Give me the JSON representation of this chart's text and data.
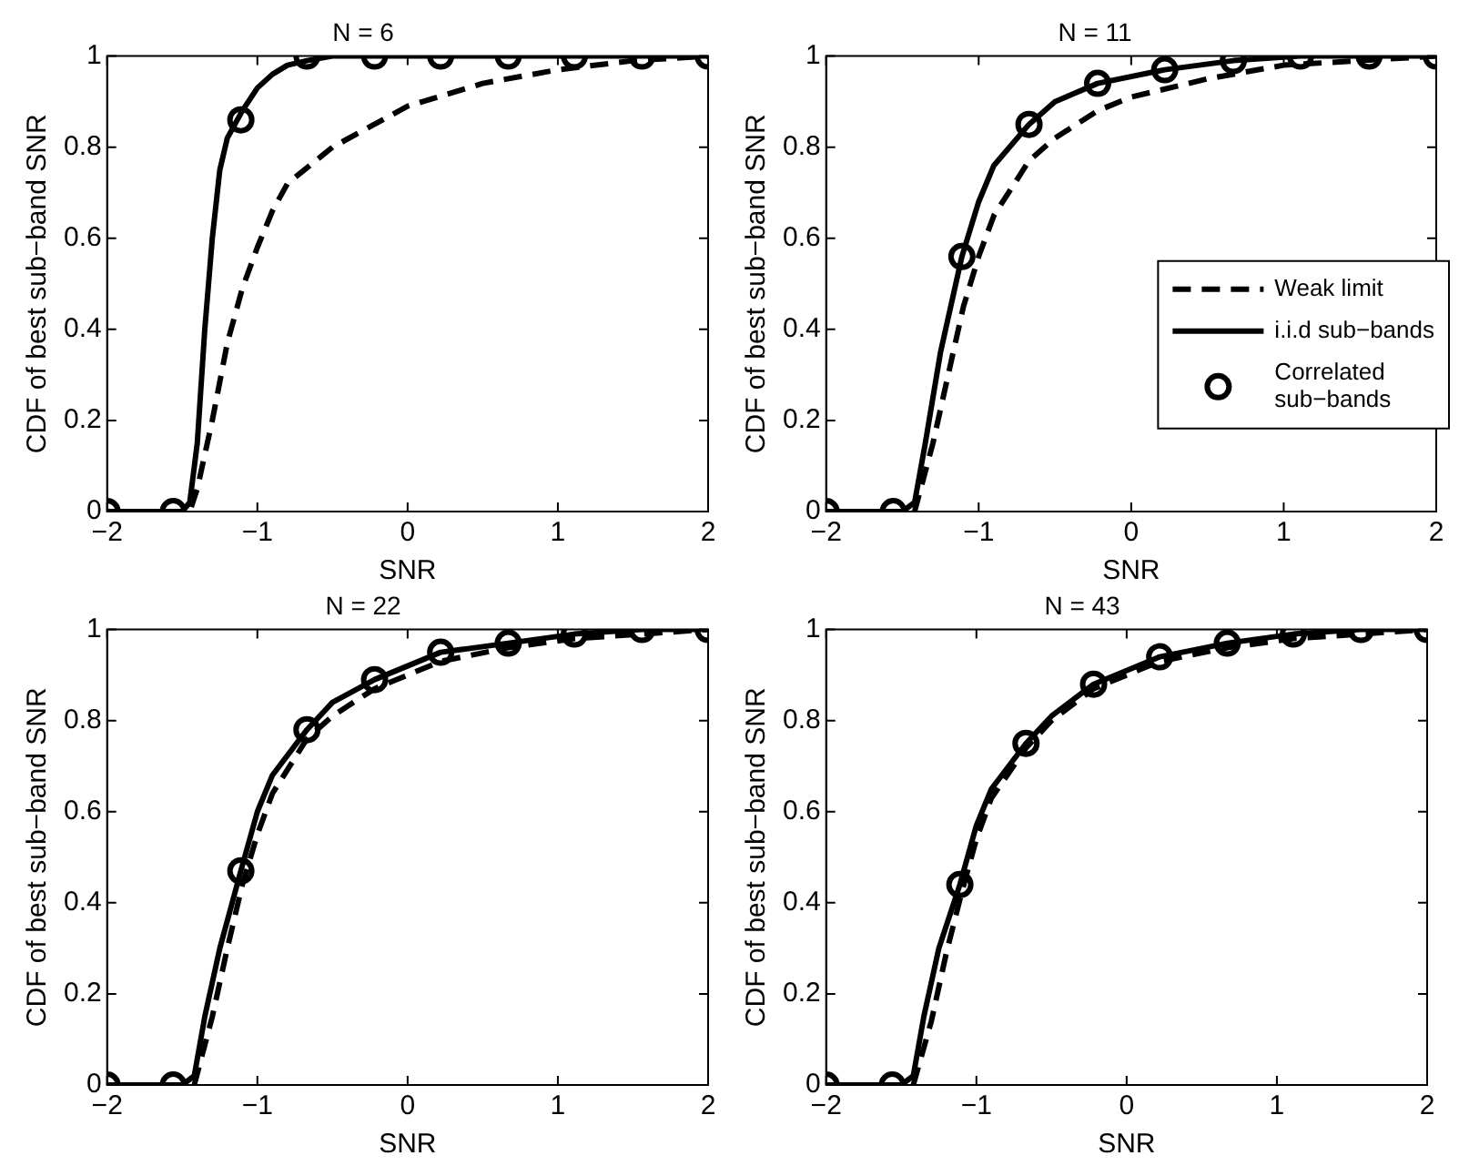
{
  "chart_data": [
    {
      "type": "line",
      "title": "N = 6",
      "xlabel": "SNR",
      "ylabel": "CDF of best sub−band SNR",
      "xlim": [
        -2,
        2
      ],
      "ylim": [
        0,
        1
      ],
      "xticks": [
        -2,
        -1,
        0,
        1,
        2
      ],
      "yticks": [
        0,
        0.2,
        0.4,
        0.6,
        0.8,
        1
      ],
      "grid": false,
      "legend": false,
      "series": [
        {
          "type": "line",
          "line_style": "dashed",
          "color": "#000000",
          "x": [
            -2,
            -1.45,
            -1.4,
            -1.3,
            -1.2,
            -1.1,
            -1,
            -0.9,
            -0.8,
            -0.5,
            0,
            0.5,
            1,
            1.5,
            2
          ],
          "values": [
            0,
            0,
            0.05,
            0.2,
            0.37,
            0.49,
            0.58,
            0.66,
            0.72,
            0.8,
            0.89,
            0.94,
            0.97,
            0.99,
            1
          ]
        },
        {
          "type": "line",
          "line_style": "solid",
          "color": "#000000",
          "x": [
            -2,
            -1.5,
            -1.45,
            -1.4,
            -1.35,
            -1.3,
            -1.25,
            -1.2,
            -1.1,
            -1,
            -0.9,
            -0.8,
            -0.67,
            -0.5,
            2
          ],
          "values": [
            0,
            0,
            0.02,
            0.15,
            0.4,
            0.6,
            0.75,
            0.82,
            0.88,
            0.93,
            0.96,
            0.98,
            0.99,
            1,
            1
          ]
        },
        {
          "type": "scatter",
          "marker": "circle",
          "color": "#000000",
          "x": [
            -2,
            -1.56,
            -1.11,
            -0.67,
            -0.22,
            0.22,
            0.67,
            1.11,
            1.56,
            2
          ],
          "values": [
            0,
            0,
            0.86,
            1,
            1,
            1,
            1,
            1,
            1,
            1
          ]
        }
      ]
    },
    {
      "type": "line",
      "title": "N = 11",
      "xlabel": "SNR",
      "ylabel": "CDF of best sub−band SNR",
      "xlim": [
        -2,
        2
      ],
      "ylim": [
        0,
        1
      ],
      "xticks": [
        -2,
        -1,
        0,
        1,
        2
      ],
      "yticks": [
        0,
        0.2,
        0.4,
        0.6,
        0.8,
        1
      ],
      "grid": false,
      "legend": "right",
      "series": [
        {
          "name": "Weak limit",
          "type": "line",
          "line_style": "dashed",
          "color": "#000000",
          "x": [
            -2,
            -1.42,
            -1.3,
            -1.2,
            -1.1,
            -1,
            -0.9,
            -0.67,
            -0.5,
            -0.22,
            0,
            0.5,
            1,
            1.5,
            2
          ],
          "values": [
            0,
            0,
            0.15,
            0.3,
            0.45,
            0.56,
            0.65,
            0.77,
            0.82,
            0.88,
            0.91,
            0.95,
            0.98,
            0.99,
            1
          ]
        },
        {
          "name": "i.i.d sub−bands",
          "type": "line",
          "line_style": "solid",
          "color": "#000000",
          "x": [
            -2,
            -1.5,
            -1.42,
            -1.35,
            -1.25,
            -1.11,
            -1,
            -0.9,
            -0.67,
            -0.5,
            -0.22,
            0.22,
            0.67,
            1.11,
            2
          ],
          "values": [
            0,
            0,
            0.02,
            0.15,
            0.35,
            0.56,
            0.68,
            0.76,
            0.85,
            0.9,
            0.94,
            0.97,
            0.99,
            1,
            1
          ]
        },
        {
          "name": "Correlated sub−bands",
          "type": "scatter",
          "marker": "circle",
          "color": "#000000",
          "x": [
            -2,
            -1.56,
            -1.11,
            -0.67,
            -0.22,
            0.22,
            0.67,
            1.11,
            1.56,
            2
          ],
          "values": [
            0,
            0,
            0.56,
            0.85,
            0.94,
            0.97,
            0.99,
            1,
            1,
            1
          ]
        }
      ]
    },
    {
      "type": "line",
      "title": "N = 22",
      "xlabel": "SNR",
      "ylabel": "CDF of best sub−band SNR",
      "xlim": [
        -2,
        2
      ],
      "ylim": [
        0,
        1
      ],
      "xticks": [
        -2,
        -1,
        0,
        1,
        2
      ],
      "yticks": [
        0,
        0.2,
        0.4,
        0.6,
        0.8,
        1
      ],
      "grid": false,
      "legend": false,
      "series": [
        {
          "type": "line",
          "line_style": "dashed",
          "color": "#000000",
          "x": [
            -2,
            -1.42,
            -1.3,
            -1.2,
            -1.1,
            -1,
            -0.9,
            -0.67,
            -0.5,
            -0.22,
            0.22,
            0.67,
            1.11,
            1.56,
            2
          ],
          "values": [
            0,
            0,
            0.15,
            0.3,
            0.44,
            0.55,
            0.64,
            0.76,
            0.81,
            0.87,
            0.93,
            0.96,
            0.98,
            0.99,
            1
          ]
        },
        {
          "type": "line",
          "line_style": "solid",
          "color": "#000000",
          "x": [
            -2,
            -1.5,
            -1.42,
            -1.35,
            -1.25,
            -1.11,
            -1,
            -0.9,
            -0.67,
            -0.5,
            -0.22,
            0.22,
            0.67,
            1.11,
            1.56,
            2
          ],
          "values": [
            0,
            0,
            0.02,
            0.15,
            0.3,
            0.47,
            0.6,
            0.68,
            0.78,
            0.84,
            0.89,
            0.95,
            0.97,
            0.99,
            1,
            1
          ]
        },
        {
          "type": "scatter",
          "marker": "circle",
          "color": "#000000",
          "x": [
            -2,
            -1.56,
            -1.11,
            -0.67,
            -0.22,
            0.22,
            0.67,
            1.11,
            1.56,
            2
          ],
          "values": [
            0,
            0,
            0.47,
            0.78,
            0.89,
            0.95,
            0.97,
            0.99,
            1,
            1
          ]
        }
      ]
    },
    {
      "type": "line",
      "title": "N = 43",
      "xlabel": "SNR",
      "ylabel": "CDF of best sub−band SNR",
      "xlim": [
        -2,
        2
      ],
      "ylim": [
        0,
        1
      ],
      "xticks": [
        -2,
        -1,
        0,
        1,
        2
      ],
      "yticks": [
        0,
        0.2,
        0.4,
        0.6,
        0.8,
        1
      ],
      "grid": false,
      "legend": false,
      "series": [
        {
          "type": "line",
          "line_style": "dashed",
          "color": "#000000",
          "x": [
            -2,
            -1.42,
            -1.3,
            -1.2,
            -1.1,
            -1,
            -0.9,
            -0.67,
            -0.5,
            -0.22,
            0.22,
            0.67,
            1.11,
            1.56,
            2
          ],
          "values": [
            0,
            0,
            0.14,
            0.29,
            0.42,
            0.54,
            0.63,
            0.74,
            0.8,
            0.87,
            0.93,
            0.96,
            0.98,
            0.99,
            1
          ]
        },
        {
          "type": "line",
          "line_style": "solid",
          "color": "#000000",
          "x": [
            -2,
            -1.5,
            -1.42,
            -1.35,
            -1.25,
            -1.11,
            -1,
            -0.9,
            -0.67,
            -0.5,
            -0.22,
            0.22,
            0.67,
            1.11,
            1.56,
            2
          ],
          "values": [
            0,
            0,
            0.02,
            0.15,
            0.3,
            0.44,
            0.57,
            0.65,
            0.75,
            0.81,
            0.88,
            0.94,
            0.97,
            0.99,
            1,
            1
          ]
        },
        {
          "type": "scatter",
          "marker": "circle",
          "color": "#000000",
          "x": [
            -2,
            -1.56,
            -1.11,
            -0.67,
            -0.22,
            0.22,
            0.67,
            1.11,
            1.56,
            2
          ],
          "values": [
            0,
            0,
            0.44,
            0.75,
            0.88,
            0.94,
            0.97,
            0.99,
            1,
            1
          ]
        }
      ]
    }
  ]
}
